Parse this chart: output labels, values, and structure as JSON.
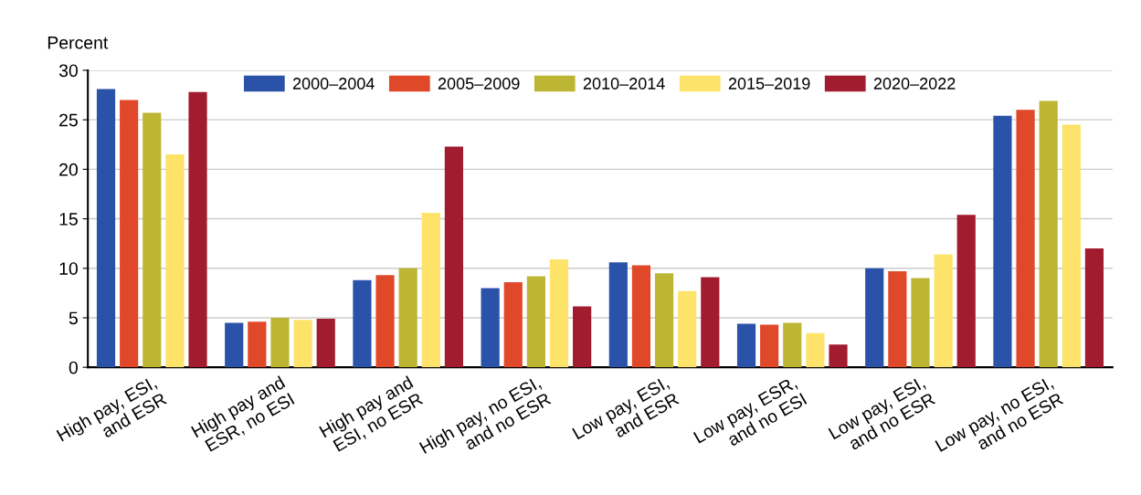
{
  "chart_data": {
    "type": "bar",
    "ylabel": "Percent",
    "categories": [
      "High pay, ESI,\nand ESR",
      "High pay and\nESR, no ESI",
      "High pay and\nESI, no ESR",
      "High pay, no ESI,\nand no ESR",
      "Low pay, ESI,\nand ESR",
      "Low pay, ESR,\nand no ESI",
      "Low pay, ESI,\nand no ESR",
      "Low pay, no ESI,\nand no ESR"
    ],
    "series": [
      {
        "name": "2000–2004",
        "color": "#2a52a8",
        "values": [
          28.1,
          4.5,
          8.8,
          8.0,
          10.6,
          4.4,
          10.0,
          25.4
        ]
      },
      {
        "name": "2005–2009",
        "color": "#e0482a",
        "values": [
          27.0,
          4.6,
          9.3,
          8.6,
          10.3,
          4.3,
          9.7,
          26.0
        ]
      },
      {
        "name": "2010–2014",
        "color": "#bdb534",
        "values": [
          25.7,
          5.0,
          10.0,
          9.2,
          9.5,
          4.5,
          9.0,
          26.9
        ]
      },
      {
        "name": "2015–2019",
        "color": "#fde36a",
        "values": [
          21.5,
          4.8,
          15.6,
          10.9,
          7.7,
          3.45,
          11.4,
          24.5
        ]
      },
      {
        "name": "2020–2022",
        "color": "#a01c2e",
        "values": [
          27.8,
          4.9,
          22.3,
          6.15,
          9.1,
          2.3,
          15.4,
          12.0
        ]
      }
    ],
    "ylim": [
      0,
      30
    ],
    "yticks": [
      0,
      5,
      10,
      15,
      20,
      25,
      30
    ],
    "grid": "y",
    "legend": "top"
  }
}
